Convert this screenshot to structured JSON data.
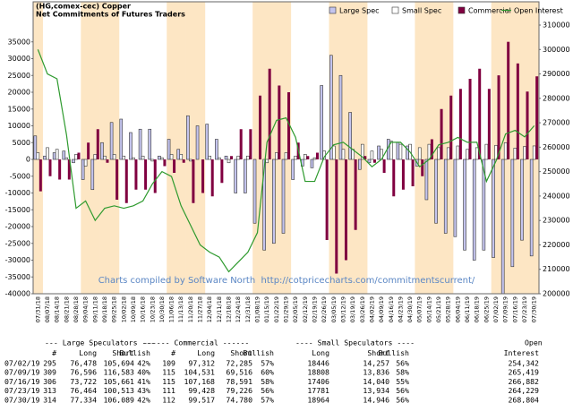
{
  "chart_data": {
    "type": "bar",
    "title": "(HG,comex-cec) Copper",
    "subtitle": "Net Commitments of Futures Traders",
    "annotation": "Charts compiled by Software North  http://cotpricecharts.com/commitmentscurrent/",
    "categories": [
      "07/31/18",
      "08/07/18",
      "08/14/18",
      "08/21/18",
      "08/28/18",
      "09/04/18",
      "09/11/18",
      "09/18/18",
      "09/25/18",
      "10/02/18",
      "10/09/18",
      "10/16/18",
      "10/23/18",
      "10/30/18",
      "11/06/18",
      "11/13/18",
      "11/20/18",
      "11/27/18",
      "12/04/18",
      "12/11/18",
      "12/18/18",
      "12/24/18",
      "12/31/18",
      "01/08/19",
      "01/15/19",
      "01/22/19",
      "01/29/19",
      "02/05/19",
      "02/12/19",
      "02/19/19",
      "02/26/19",
      "03/05/19",
      "03/12/19",
      "03/19/19",
      "03/26/19",
      "04/02/19",
      "04/09/19",
      "04/16/19",
      "04/23/19",
      "04/30/19",
      "05/07/19",
      "05/14/19",
      "05/21/19",
      "05/28/19",
      "06/04/19",
      "06/11/19",
      "06/18/19",
      "06/25/19",
      "07/02/19",
      "07/09/19",
      "07/16/19",
      "07/23/19",
      "07/30/19"
    ],
    "series": [
      {
        "name": "Large Spec",
        "type": "bar",
        "color": "#c4c4ee",
        "values": [
          7000,
          1000,
          2000,
          2500,
          -1000,
          -6000,
          -9000,
          5000,
          11000,
          12000,
          8000,
          9000,
          9000,
          1000,
          6000,
          3000,
          13000,
          10000,
          10500,
          6000,
          1000,
          -10000,
          -10000,
          -19000,
          -27000,
          -25000,
          -22000,
          -6000,
          -2000,
          -2500,
          22000,
          31000,
          25000,
          14000,
          -3000,
          -1000,
          4000,
          6000,
          5000,
          4000,
          -2000,
          -12000,
          -19000,
          -22000,
          -23000,
          -27000,
          -30000,
          -27000,
          -29216,
          -39987,
          -31939,
          -24049,
          -28755
        ]
      },
      {
        "name": "Small Spec",
        "type": "bar",
        "color": "#ffffff",
        "values": [
          2000,
          3500,
          3000,
          500,
          1500,
          -2000,
          1500,
          1000,
          1500,
          1000,
          500,
          1000,
          -500,
          500,
          1500,
          1500,
          -500,
          0,
          1000,
          500,
          -1000,
          1000,
          1000,
          0,
          -1000,
          2000,
          2000,
          1000,
          1500,
          500,
          2500,
          4000,
          3000,
          3000,
          4500,
          2500,
          3000,
          5500,
          4500,
          4500,
          3500,
          4500,
          3500,
          3500,
          4000,
          3000,
          3500,
          4500,
          4189,
          4972,
          3366,
          3847,
          4018
        ]
      },
      {
        "name": "Commercial",
        "type": "bar",
        "color": "#800040",
        "values": [
          -9500,
          -5000,
          -6000,
          -6000,
          2000,
          5000,
          9000,
          -1000,
          -12000,
          -13000,
          -9000,
          -9000,
          -10000,
          -2000,
          -4000,
          -1000,
          -13000,
          -10000,
          -11000,
          -7000,
          1000,
          9000,
          9000,
          19000,
          27000,
          22000,
          20000,
          5000,
          1000,
          2000,
          -24000,
          -34000,
          -30000,
          -21000,
          1000,
          -1000,
          -4000,
          -11000,
          -9000,
          -8000,
          -5000,
          6000,
          15000,
          19000,
          21000,
          24000,
          27000,
          21000,
          25027,
          35015,
          28577,
          20202,
          24737
        ]
      },
      {
        "name": "Open Interest",
        "type": "line",
        "axis": "y2",
        "color": "#2e9a2e",
        "values": [
          300000,
          290000,
          288000,
          265000,
          235000,
          238000,
          230000,
          235000,
          236000,
          235000,
          236000,
          238000,
          245000,
          250000,
          248000,
          236000,
          228000,
          220000,
          217000,
          215000,
          209000,
          213000,
          217000,
          225000,
          262000,
          271000,
          272000,
          264000,
          246000,
          246000,
          256000,
          261000,
          262000,
          259000,
          256000,
          252000,
          255000,
          262000,
          262000,
          258000,
          252000,
          255000,
          261000,
          262000,
          264000,
          262000,
          262000,
          246000,
          254342,
          265419,
          266882,
          264229,
          268804
        ]
      }
    ],
    "ylim": [
      -40000,
      40000
    ],
    "yticks": [
      -40000,
      -35000,
      -30000,
      -25000,
      -20000,
      -15000,
      -10000,
      -5000,
      0,
      5000,
      10000,
      15000,
      20000,
      25000,
      30000,
      35000
    ],
    "y2lim": [
      200000,
      310000
    ],
    "y2ticks": [
      200000,
      210000,
      220000,
      230000,
      240000,
      250000,
      260000,
      270000,
      280000,
      290000,
      300000,
      310000
    ],
    "grid": false,
    "legend": "top-right"
  },
  "table": {
    "groups": [
      "--- Large Speculators ---",
      "------ Commercial ------",
      "---- Small Speculators ----",
      "Open"
    ],
    "columns": [
      "#",
      "Long",
      "Short",
      "Bullish",
      "#",
      "Long",
      "Short",
      "Bullish",
      "Long",
      "Short",
      "Bullish",
      "Interest"
    ],
    "rows": [
      [
        "07/02/19",
        "295",
        "76,478",
        "105,694",
        "42%",
        "109",
        "97,312",
        "72,285",
        "57%",
        "18446",
        "14,257",
        "56%",
        "254,342"
      ],
      [
        "07/09/19",
        "309",
        "76,596",
        "116,583",
        "40%",
        "115",
        "104,531",
        "69,516",
        "60%",
        "18808",
        "13,836",
        "58%",
        "265,419"
      ],
      [
        "07/16/19",
        "306",
        "73,722",
        "105,661",
        "41%",
        "115",
        "107,168",
        "78,591",
        "58%",
        "17406",
        "14,040",
        "55%",
        "266,882"
      ],
      [
        "07/23/19",
        "313",
        "76,464",
        "100,513",
        "43%",
        "111",
        "99,428",
        "79,226",
        "56%",
        "17781",
        "13,934",
        "56%",
        "264,229"
      ],
      [
        "07/30/19",
        "314",
        "77,334",
        "106,089",
        "42%",
        "112",
        "99,517",
        "74,780",
        "57%",
        "18964",
        "14,946",
        "56%",
        "268,804"
      ]
    ]
  }
}
